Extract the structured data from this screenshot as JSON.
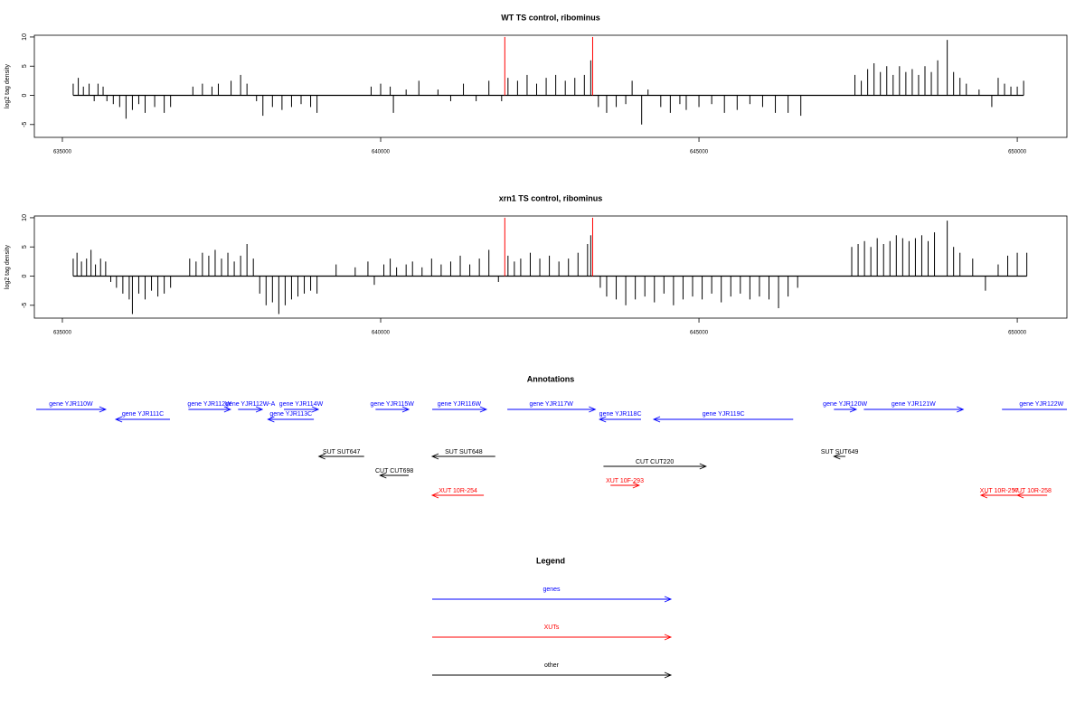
{
  "chart_data": [
    {
      "type": "spike",
      "title": "WT TS control, ribominus",
      "ylabel": "log2 tag density",
      "xlim": [
        634560,
        650780
      ],
      "ylim": [
        -7.2,
        10.3
      ],
      "xticks": [
        635000,
        640000,
        645000,
        650000
      ],
      "yticks": [
        -5,
        0,
        5,
        10
      ],
      "series": [
        {
          "color": "#000000",
          "x": [
            635170,
            635250,
            635330,
            635420,
            635500,
            635560,
            635640,
            635700,
            635800,
            635900,
            636000,
            636100,
            636200,
            636300,
            636450,
            636600,
            636700,
            637050,
            637200,
            637350,
            637450,
            637650,
            637800,
            637900,
            638050,
            638150,
            638300,
            638450,
            638600,
            638750,
            638900,
            639000,
            639850,
            640000,
            640150,
            640200,
            640400,
            640600,
            640900,
            641100,
            641300,
            641500,
            641700,
            641900,
            642000,
            642150,
            642300,
            642450,
            642600,
            642750,
            642900,
            643050,
            643200,
            643300,
            643420,
            643550,
            643700,
            643850,
            643950,
            644100,
            644200,
            644400,
            644550,
            644700,
            644800,
            645000,
            645200,
            645400,
            645600,
            645800,
            646000,
            646200,
            646400,
            646600,
            647450,
            647550,
            647650,
            647750,
            647850,
            647950,
            648050,
            648150,
            648250,
            648350,
            648450,
            648550,
            648650,
            648750,
            648900,
            649000,
            649100,
            649200,
            649400,
            649600,
            649700,
            649800,
            649900,
            650000,
            650100
          ],
          "values": [
            2,
            3,
            1.5,
            2,
            -1,
            2,
            1.5,
            -1,
            -1.5,
            -2,
            -4,
            -2.5,
            -1.5,
            -3,
            -2,
            -3,
            -2,
            1.5,
            2,
            1.5,
            2,
            2.5,
            3.5,
            2,
            -1,
            -3.5,
            -2,
            -2.5,
            -2,
            -1.5,
            -2,
            -3,
            1.5,
            2,
            1.5,
            -3,
            1,
            2.5,
            1,
            -1,
            2,
            -1,
            2.5,
            -1,
            3,
            2.5,
            3.5,
            2,
            3,
            3.5,
            2.5,
            3,
            3.5,
            6,
            -2,
            -3,
            -2,
            -1.5,
            2.5,
            -5,
            1,
            -2,
            -3,
            -1.5,
            -2.5,
            -2,
            -1.5,
            -3,
            -2.5,
            -1.5,
            -2,
            -3,
            -3,
            -3.5,
            3.5,
            2.5,
            4.5,
            5.5,
            4,
            5,
            3.5,
            5,
            4,
            4.5,
            3.5,
            5,
            4,
            6,
            9.5,
            4,
            3,
            2,
            1,
            -2,
            3,
            2,
            1.5,
            1.5,
            2.5
          ]
        },
        {
          "color": "#ff0000",
          "x": [
            641950,
            643330
          ],
          "values": [
            10,
            10
          ]
        }
      ]
    },
    {
      "type": "spike",
      "title": "xrn1 TS control, ribominus",
      "ylabel": "log2 tag density",
      "xlim": [
        634560,
        650780
      ],
      "ylim": [
        -7.2,
        10.3
      ],
      "xticks": [
        635000,
        640000,
        645000,
        650000
      ],
      "yticks": [
        -5,
        0,
        5,
        10
      ],
      "series": [
        {
          "color": "#000000",
          "x": [
            635170,
            635230,
            635300,
            635380,
            635450,
            635520,
            635600,
            635680,
            635760,
            635850,
            635950,
            636050,
            636100,
            636200,
            636300,
            636400,
            636500,
            636600,
            636700,
            637000,
            637100,
            637200,
            637300,
            637400,
            637500,
            637600,
            637700,
            637800,
            637900,
            638000,
            638100,
            638200,
            638300,
            638400,
            638500,
            638600,
            638700,
            638800,
            638900,
            639000,
            639300,
            639600,
            639800,
            639900,
            640050,
            640150,
            640250,
            640400,
            640500,
            640650,
            640800,
            640950,
            641100,
            641250,
            641400,
            641550,
            641700,
            641850,
            642000,
            642100,
            642200,
            642350,
            642500,
            642650,
            642800,
            642950,
            643100,
            643250,
            643300,
            643450,
            643550,
            643700,
            643850,
            644000,
            644150,
            644300,
            644450,
            644600,
            644750,
            644900,
            645050,
            645200,
            645350,
            645500,
            645650,
            645800,
            645950,
            646100,
            646250,
            646400,
            646550,
            647400,
            647500,
            647600,
            647700,
            647800,
            647900,
            648000,
            648100,
            648200,
            648300,
            648400,
            648500,
            648600,
            648700,
            648900,
            649000,
            649100,
            649300,
            649500,
            649700,
            649850,
            650000,
            650150
          ],
          "values": [
            3,
            4,
            2.5,
            3,
            4.5,
            2,
            3,
            2.5,
            -1,
            -2,
            -3,
            -4,
            -6.5,
            -3,
            -4,
            -2.5,
            -3.5,
            -3,
            -2,
            3,
            2.5,
            4,
            3.5,
            4.5,
            3,
            4,
            2.5,
            3.5,
            5.5,
            3,
            -3,
            -5,
            -4.5,
            -6.5,
            -5,
            -4,
            -3.5,
            -3,
            -2.5,
            -3,
            2,
            1.5,
            2.5,
            -1.5,
            2,
            3,
            1.5,
            2,
            2.5,
            1.5,
            3,
            2,
            2.5,
            3.5,
            2,
            3,
            4.5,
            -1,
            3.5,
            2.5,
            3,
            4,
            3,
            3.5,
            2.5,
            3,
            4,
            5.5,
            7,
            -2,
            -3.5,
            -4,
            -5,
            -4,
            -3.5,
            -4.5,
            -3,
            -5,
            -4,
            -3.5,
            -4,
            -3,
            -4.5,
            -3.5,
            -3,
            -4,
            -3.5,
            -4,
            -5.5,
            -3.5,
            -2,
            5,
            5.5,
            6,
            5,
            6.5,
            5.5,
            6,
            7,
            6.5,
            6,
            6.5,
            7,
            6,
            7.5,
            9.5,
            5,
            4,
            3,
            -2.5,
            2,
            3.5,
            4,
            4
          ]
        },
        {
          "color": "#ff0000",
          "x": [
            641950,
            643330
          ],
          "values": [
            10,
            10
          ]
        }
      ]
    }
  ],
  "annotations": {
    "title": "Annotations",
    "features": [
      {
        "label": "gene YJR110W",
        "start": 634590,
        "end": 635680,
        "strand": "+",
        "color": "#0000ff"
      },
      {
        "label": "gene YJR112W",
        "start": 636980,
        "end": 637640,
        "strand": "+",
        "color": "#0000ff"
      },
      {
        "label": "gene YJR112W-A",
        "start": 637760,
        "end": 638140,
        "strand": "+",
        "color": "#0000ff"
      },
      {
        "label": "gene YJR114W",
        "start": 638480,
        "end": 639020,
        "strand": "+",
        "color": "#0000ff"
      },
      {
        "label": "gene YJR115W",
        "start": 639920,
        "end": 640440,
        "strand": "+",
        "color": "#0000ff"
      },
      {
        "label": "gene YJR116W",
        "start": 640810,
        "end": 641660,
        "strand": "+",
        "color": "#0000ff"
      },
      {
        "label": "gene YJR117W",
        "start": 641990,
        "end": 643370,
        "strand": "+",
        "color": "#0000ff"
      },
      {
        "label": "gene YJR120W",
        "start": 647120,
        "end": 647470,
        "strand": "+",
        "color": "#0000ff"
      },
      {
        "label": "gene YJR121W",
        "start": 647590,
        "end": 649150,
        "strand": "+",
        "color": "#0000ff"
      },
      {
        "label": "gene YJR122W",
        "start": 649760,
        "end": 651000,
        "strand": "+",
        "color": "#0000ff"
      },
      {
        "label": "gene YJR111C",
        "start": 635840,
        "end": 636690,
        "strand": "-",
        "color": "#0000ff"
      },
      {
        "label": "gene YJR113C",
        "start": 638230,
        "end": 638950,
        "strand": "-",
        "color": "#0000ff"
      },
      {
        "label": "gene YJR118C",
        "start": 643440,
        "end": 644090,
        "strand": "-",
        "color": "#0000ff"
      },
      {
        "label": "gene YJR119C",
        "start": 644290,
        "end": 646480,
        "strand": "-",
        "color": "#0000ff"
      },
      {
        "label": "SUT SUT647",
        "start": 639030,
        "end": 639740,
        "strand": "-",
        "color": "#000000"
      },
      {
        "label": "SUT SUT648",
        "start": 640810,
        "end": 641800,
        "strand": "-",
        "color": "#000000"
      },
      {
        "label": "SUT SUT649",
        "start": 647120,
        "end": 647300,
        "strand": "-",
        "color": "#000000"
      },
      {
        "label": "CUT CUT698",
        "start": 639990,
        "end": 640440,
        "strand": "-",
        "color": "#000000"
      },
      {
        "label": "CUT CUT220",
        "start": 643500,
        "end": 645110,
        "strand": "+",
        "color": "#000000"
      },
      {
        "label": "XUT 10F-293",
        "start": 643610,
        "end": 644060,
        "strand": "+",
        "color": "#ff0000"
      },
      {
        "label": "XUT 10R-254",
        "start": 640810,
        "end": 641620,
        "strand": "-",
        "color": "#ff0000"
      },
      {
        "label": "XUT 10R-257",
        "start": 649430,
        "end": 650000,
        "strand": "-",
        "color": "#ff0000"
      },
      {
        "label": "XUT 10R-258",
        "start": 650000,
        "end": 650470,
        "strand": "-",
        "color": "#ff0000"
      }
    ]
  },
  "legend": {
    "title": "Legend",
    "items": [
      {
        "label": "genes",
        "color": "#0000ff"
      },
      {
        "label": "XUTs",
        "color": "#ff0000"
      },
      {
        "label": "other",
        "color": "#000000"
      }
    ]
  }
}
